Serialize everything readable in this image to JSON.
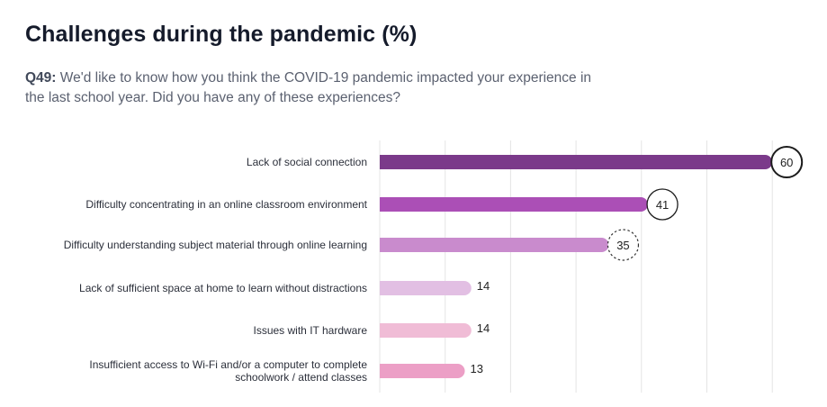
{
  "header": {
    "title": "Challenges during the pandemic (%)",
    "question_number": "Q49:",
    "question_text": "We'd like to know how you think the COVID-19 pandemic impacted your experience in the last school year. Did you have any of these experiences?"
  },
  "chart_data": {
    "type": "bar",
    "orientation": "horizontal",
    "categories": [
      [
        "Lack of social connection"
      ],
      [
        "Difficulty concentrating in an online classroom environment"
      ],
      [
        "Difficulty understanding subject material through online learning"
      ],
      [
        "Lack of sufficient space at home to learn without distractions"
      ],
      [
        "Issues with IT hardware"
      ],
      [
        "Insufficient access to Wi-Fi and/or a computer to complete",
        "schoolwork / attend classes"
      ]
    ],
    "values": [
      60,
      41,
      35,
      14,
      14,
      13
    ],
    "xlim": [
      0,
      60
    ],
    "grid": true,
    "highlight": [
      "solid-circle",
      "solid-circle",
      "dashed-circle",
      "none",
      "none",
      "none"
    ],
    "colors": [
      "#7b3a8a",
      "#ab4fb6",
      "#c98bcd",
      "#e2bfe3",
      "#f0bcd6",
      "#ec9fc6"
    ]
  }
}
